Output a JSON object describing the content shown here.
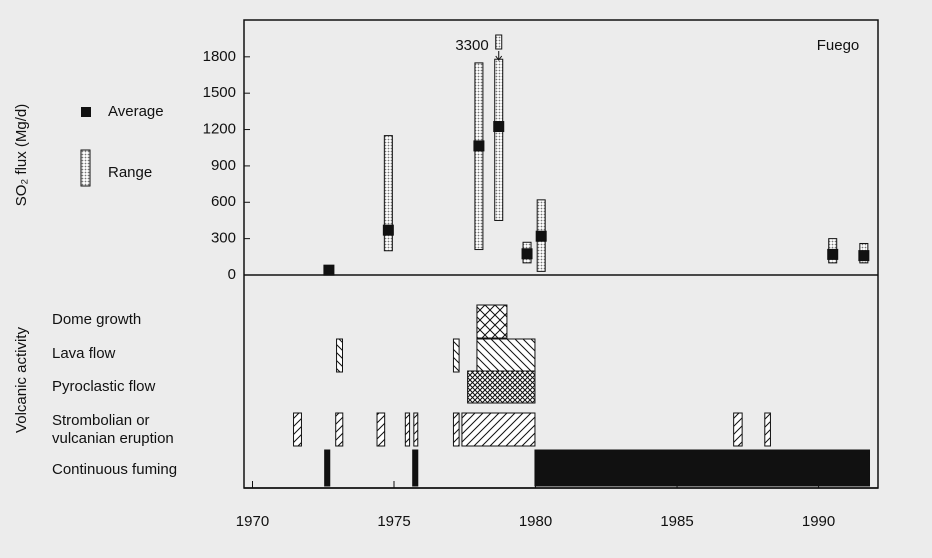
{
  "chart_data": [
    {
      "type": "scatter",
      "title": "Fuego",
      "ylabel": "SO₂ flux (Mg/d)",
      "xlim": [
        1969.7,
        1992.1
      ],
      "ylim": [
        0,
        1980
      ],
      "yticks": [
        0,
        300,
        600,
        900,
        1200,
        1500,
        1800
      ],
      "series": [
        {
          "name": "Average",
          "color": "#111111",
          "x": [
            1972.7,
            1974.8,
            1978.0,
            1978.7,
            1979.7,
            1980.2,
            1990.5,
            1991.6
          ],
          "values": [
            40,
            370,
            1065,
            1225,
            175,
            320,
            170,
            160
          ]
        },
        {
          "name": "Range",
          "color": "#777777",
          "x": [
            1974.8,
            1978.0,
            1978.7,
            1979.7,
            1980.2,
            1990.5,
            1991.6
          ],
          "low": [
            200,
            210,
            450,
            100,
            30,
            100,
            100
          ],
          "high": [
            1150,
            1750,
            1780,
            270,
            620,
            300,
            260
          ]
        }
      ],
      "annotations": [
        {
          "text": "3300"
        }
      ]
    },
    {
      "type": "timeline",
      "ylabel": "Volcanic activity",
      "xlim": [
        1969.7,
        1992.1
      ],
      "xticks": [
        1970,
        1975,
        1980,
        1985,
        1990
      ],
      "rows": [
        {
          "label": [
            "Dome growth"
          ],
          "pattern": "crosshatch",
          "intervals": [
            [
              1977.93,
              1978.99
            ]
          ]
        },
        {
          "label": [
            "Lava flow"
          ],
          "pattern": "backslash",
          "intervals": [
            [
              1972.97,
              1973.18
            ],
            [
              1977.1,
              1977.3
            ],
            [
              1977.93,
              1979.98
            ]
          ]
        },
        {
          "label": [
            "Pyroclastic flow"
          ],
          "pattern": "dense-crosshatch",
          "intervals": [
            [
              1977.6,
              1979.98
            ]
          ]
        },
        {
          "label": [
            "Strombolian or",
            "vulcanian eruption"
          ],
          "pattern": "slash",
          "intervals": [
            [
              1971.45,
              1971.73
            ],
            [
              1972.94,
              1973.19
            ],
            [
              1974.4,
              1974.67
            ],
            [
              1975.4,
              1975.55
            ],
            [
              1975.7,
              1975.84
            ],
            [
              1977.1,
              1977.3
            ],
            [
              1977.4,
              1979.98
            ],
            [
              1987.0,
              1987.3
            ],
            [
              1988.1,
              1988.3
            ]
          ]
        },
        {
          "label": [
            "Continuous fuming"
          ],
          "pattern": "solid",
          "intervals": [
            [
              1972.55,
              1972.73
            ],
            [
              1975.66,
              1975.84
            ],
            [
              1979.98,
              1991.8
            ]
          ]
        }
      ]
    }
  ]
}
